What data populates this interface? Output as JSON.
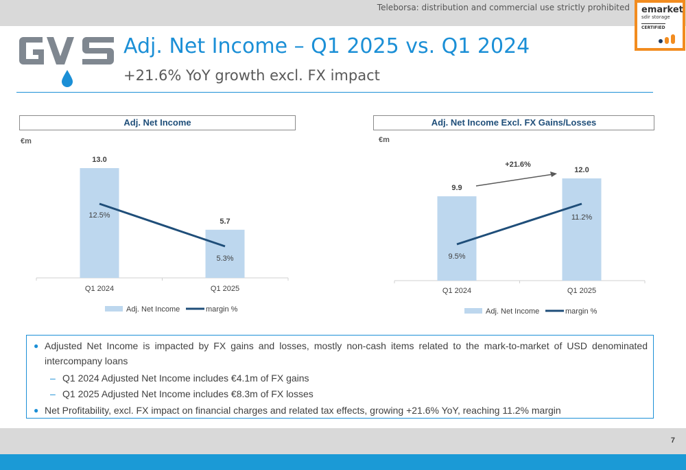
{
  "header": {
    "disclaimer": "Teleborsa: distribution and commercial use strictly prohibited",
    "badge": {
      "line1": "emarket",
      "line2": "sdir storage",
      "line3": "CERTIFIED"
    }
  },
  "logo": {
    "name": "GVS"
  },
  "title": "Adj. Net Income – Q1 2025 vs. Q1 2024",
  "subtitle": "+21.6% YoY growth excl. FX impact",
  "chart_data": [
    {
      "type": "bar",
      "title": "Adj. Net Income",
      "unit": "€m",
      "categories": [
        "Q1 2024",
        "Q1 2025"
      ],
      "series": [
        {
          "name": "Adj. Net Income",
          "type": "bar",
          "values": [
            13.0,
            5.7
          ],
          "labels": [
            "13.0",
            "5.7"
          ]
        },
        {
          "name": "margin %",
          "type": "line",
          "values": [
            12.5,
            5.3
          ],
          "labels": [
            "12.5%",
            "5.3%"
          ]
        }
      ],
      "legend": "bottom",
      "grid": false
    },
    {
      "type": "bar",
      "title": "Adj. Net Income Excl. FX Gains/Losses",
      "unit": "€m",
      "categories": [
        "Q1 2024",
        "Q1 2025"
      ],
      "series": [
        {
          "name": "Adj. Net Income",
          "type": "bar",
          "values": [
            9.9,
            12.0
          ],
          "labels": [
            "9.9",
            "12.0"
          ]
        },
        {
          "name": "margin %",
          "type": "line",
          "values": [
            9.5,
            11.2
          ],
          "labels": [
            "9.5%",
            "11.2%"
          ]
        }
      ],
      "annotation": "+21.6%",
      "legend": "bottom",
      "grid": false
    }
  ],
  "colors": {
    "bar": "#bdd7ee",
    "line": "#1f4e79",
    "accent": "#1b8fd6",
    "badge_border": "#f28c1f"
  },
  "notes": {
    "bullet1": "Adjusted Net Income is impacted by FX gains and losses, mostly non-cash items related to the mark-to-market of USD denominated intercompany loans",
    "sub1": "Q1 2024 Adjusted Net Income includes €4.1m of FX gains",
    "sub2": "Q1 2025 Adjusted Net Income includes €8.3m of FX losses",
    "bullet2": "Net Profitability, excl. FX impact on financial charges and related tax effects, growing +21.6% YoY, reaching 11.2% margin"
  },
  "footer": {
    "page": "7"
  }
}
